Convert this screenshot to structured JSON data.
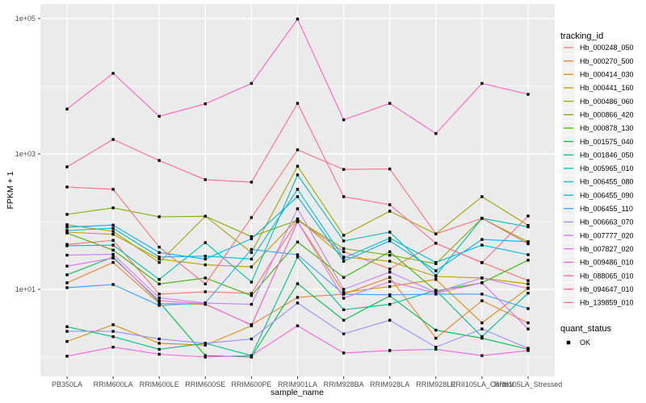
{
  "figure": {
    "x_axis_title": "sample_name",
    "y_axis_title": "FPKM + 1"
  },
  "legend": {
    "tracking_title": "tracking_id",
    "quant_title": "quant_status",
    "quant_items": [
      {
        "label": "OK",
        "symbol": "filled-black-square"
      }
    ]
  },
  "colors": {
    "background": "#FFFFFF",
    "panel_bg": "#EBEBEB",
    "grid": "#FFFFFF",
    "legend_key_bg": "#F2F2F2",
    "tick_label": "#4D4D4D",
    "axis_title": "#000000",
    "point": "#000000"
  },
  "chart_data": {
    "type": "line",
    "title": "",
    "xlabel": "sample_name",
    "ylabel": "FPKM + 1",
    "x_categories": [
      "PB350LA",
      "RRIM600LA",
      "RRIM600LE",
      "RRIM600SE",
      "RRIM600PE",
      "RRIM901LA",
      "RRIM928BA",
      "RRIM928LA",
      "RRIM928LE",
      "RRII105LA_Control",
      "RRII105LA_Stressed"
    ],
    "y_scale": "log10",
    "ylim": [
      1,
      120000
    ],
    "y_tick_values": [
      10,
      1000,
      100000
    ],
    "y_tick_labels": [
      "1e+01",
      "1e+03",
      "1e+05"
    ],
    "y_minor_values": [
      1,
      100,
      10000
    ],
    "grid": true,
    "legend_position": "right",
    "point_shape": "filled-square-black",
    "legend_title": "tracking_id",
    "quant_status": {
      "title": "quant_status",
      "items": [
        "OK"
      ]
    },
    "series": [
      {
        "name": "Hb_000248_050",
        "color": "#F8766D",
        "values": [
          46,
          53,
          8.5,
          9.2,
          8.7,
          105,
          36,
          20,
          48,
          25,
          13.5
        ]
      },
      {
        "name": "Hb_000270_500",
        "color": "#EA8331",
        "values": [
          12.5,
          25,
          6.2,
          6.0,
          3.0,
          7.6,
          8.5,
          15,
          1.9,
          6.8,
          3.2
        ]
      },
      {
        "name": "Hb_000414_030",
        "color": "#D89000",
        "values": [
          1.7,
          3.0,
          1.6,
          1.5,
          2.9,
          100,
          9,
          11,
          14,
          3.2,
          10.5
        ]
      },
      {
        "name": "Hb_000441_160",
        "color": "#C09B00",
        "values": [
          70,
          65,
          28,
          23,
          21.5,
          110,
          30,
          26,
          15.5,
          14.7,
          12
        ]
      },
      {
        "name": "Hb_000486_060",
        "color": "#A3A500",
        "values": [
          90,
          72,
          25,
          120,
          35,
          660,
          63,
          143,
          66,
          234,
          88
        ]
      },
      {
        "name": "Hb_000866_420",
        "color": "#7CAE00",
        "values": [
          128,
          160,
          118,
          120,
          60,
          105,
          40,
          32,
          24,
          112,
          50
        ]
      },
      {
        "name": "Hb_000878_130",
        "color": "#39B600",
        "values": [
          68,
          38,
          12,
          14.7,
          8.1,
          50,
          15,
          36,
          9.5,
          12.5,
          27
        ]
      },
      {
        "name": "Hb_001575_040",
        "color": "#00BB4E",
        "values": [
          16.4,
          30,
          6.5,
          1.05,
          1.0,
          12.1,
          3.5,
          8,
          2.5,
          1.9,
          1.3
        ]
      },
      {
        "name": "Hb_001846_050",
        "color": "#00C087",
        "values": [
          2.8,
          2.0,
          1.3,
          1.6,
          1.05,
          30,
          5,
          6,
          9.7,
          2.0,
          8.8
        ]
      },
      {
        "name": "Hb_005965_010",
        "color": "#00C0AF",
        "values": [
          44,
          45,
          14,
          49,
          12.8,
          490,
          52,
          70,
          16,
          112,
          84
        ]
      },
      {
        "name": "Hb_006455_080",
        "color": "#00BCD8",
        "values": [
          74,
          80,
          30,
          31,
          28,
          300,
          29,
          57,
          25,
          45,
          32.5
        ]
      },
      {
        "name": "Hb_006455_090",
        "color": "#00B0F6",
        "values": [
          83,
          89,
          35,
          28,
          56,
          234,
          26,
          52,
          18.8,
          54.6,
          50.5
        ]
      },
      {
        "name": "Hb_006455_110",
        "color": "#35A2FF",
        "values": [
          10.6,
          11.8,
          5.8,
          6.3,
          39,
          32.5,
          8.5,
          8.3,
          8.5,
          8.5,
          5.2
        ]
      },
      {
        "name": "Hb_006663_070",
        "color": "#9590FF",
        "values": [
          2.4,
          2.4,
          1.85,
          1.6,
          1.85,
          6.3,
          2.2,
          3.5,
          1.4,
          2.6,
          1.35
        ]
      },
      {
        "name": "Hb_007777_020",
        "color": "#C77CFF",
        "values": [
          32,
          33,
          7.5,
          6.3,
          6.0,
          155,
          10,
          18,
          9,
          14.7,
          10.3
        ]
      },
      {
        "name": "Hb_007827_020",
        "color": "#E76BF3",
        "values": [
          22,
          29,
          6.8,
          6.1,
          2.95,
          100,
          7.4,
          13,
          8.8,
          12.5,
          2.6
        ]
      },
      {
        "name": "Hb_009486_010",
        "color": "#FA62DB",
        "values": [
          1.03,
          1.4,
          1.1,
          1.0,
          1.05,
          2.9,
          1.15,
          1.25,
          1.3,
          1.05,
          1.25
        ]
      },
      {
        "name": "Hb_088065_010",
        "color": "#FF62BC",
        "values": [
          4600,
          15500,
          3600,
          5500,
          11000,
          98000,
          3200,
          5600,
          2000,
          11000,
          7600
        ]
      },
      {
        "name": "Hb_094647_010",
        "color": "#FF6A98",
        "values": [
          645,
          1640,
          800,
          417,
          383,
          5600,
          234,
          178,
          48,
          24.7,
          121
        ]
      },
      {
        "name": "Hb_139859_010",
        "color": "#FC717F",
        "values": [
          325,
          300,
          42,
          12,
          115,
          1150,
          590,
          600,
          66,
          112,
          47
        ]
      }
    ]
  }
}
